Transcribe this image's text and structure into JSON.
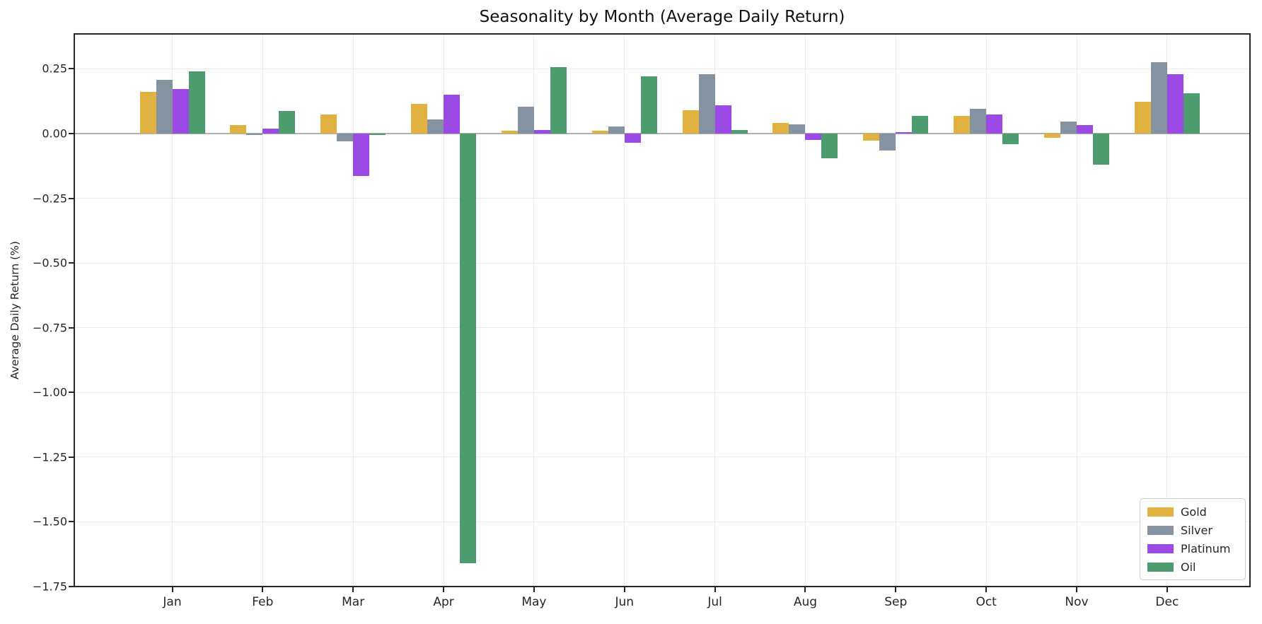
{
  "chart_data": {
    "type": "bar",
    "title": "Seasonality by Month (Average Daily Return)",
    "xlabel": "",
    "ylabel": "Average Daily Return (%)",
    "categories": [
      "Jan",
      "Feb",
      "Mar",
      "Apr",
      "May",
      "Jun",
      "Jul",
      "Aug",
      "Sep",
      "Oct",
      "Nov",
      "Dec"
    ],
    "series": [
      {
        "name": "Gold",
        "color": "#DFB241",
        "values": [
          0.16,
          0.032,
          0.075,
          0.116,
          0.012,
          0.01,
          0.091,
          0.042,
          -0.027,
          0.068,
          -0.017,
          0.124
        ]
      },
      {
        "name": "Silver",
        "color": "#8593A0",
        "values": [
          0.208,
          -0.006,
          -0.03,
          0.056,
          0.105,
          0.026,
          0.23,
          0.036,
          -0.066,
          0.095,
          0.047,
          0.277
        ]
      },
      {
        "name": "Platinum",
        "color": "#9B4AE6",
        "values": [
          0.172,
          0.018,
          -0.164,
          0.15,
          0.013,
          -0.035,
          0.11,
          -0.025,
          0.006,
          0.073,
          0.033,
          0.23
        ]
      },
      {
        "name": "Oil",
        "color": "#4D9C70",
        "values": [
          0.24,
          0.088,
          -0.006,
          -1.66,
          0.258,
          0.222,
          0.015,
          -0.095,
          0.068,
          -0.04,
          -0.12,
          0.157
        ]
      }
    ],
    "ylim": [
      -1.75,
      0.385
    ],
    "yticks": [
      0.25,
      0.0,
      -0.25,
      -0.5,
      -0.75,
      -1.0,
      -1.25,
      -1.5,
      -1.75
    ],
    "grid": true,
    "legend_position": "lower right",
    "zero_line_color": "#b0b0b0",
    "grid_color": "#ececec",
    "spine_color": "#262626"
  }
}
